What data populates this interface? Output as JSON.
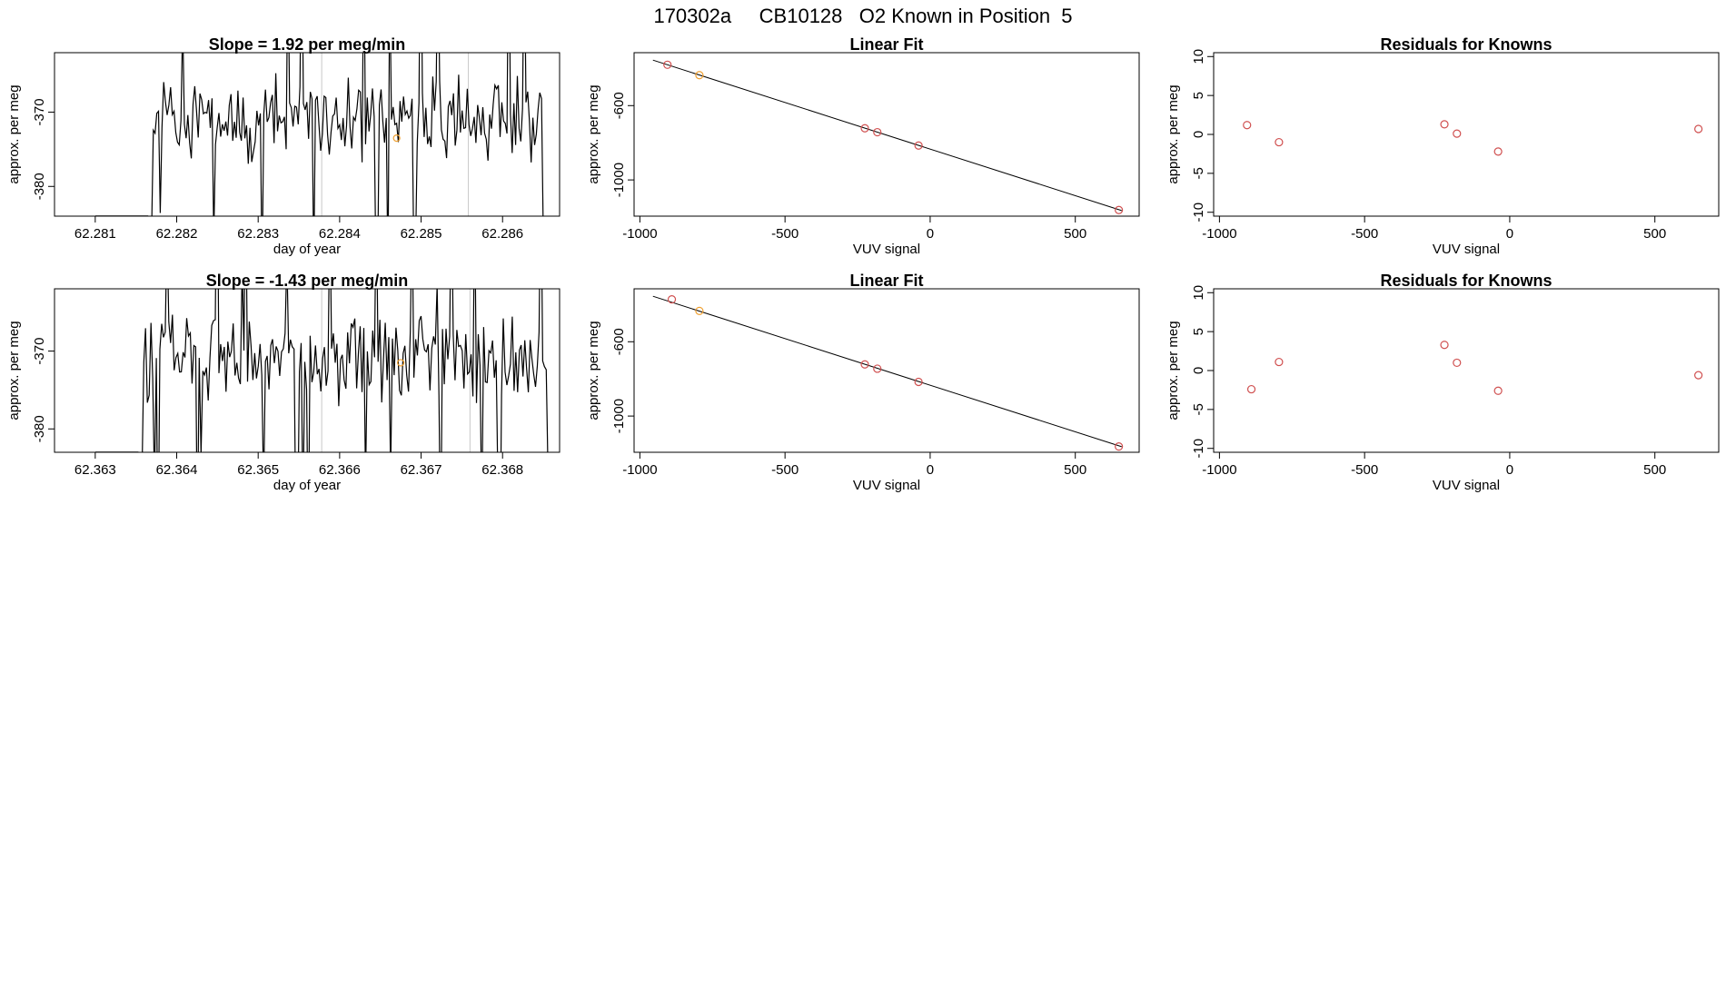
{
  "page_title": "170302a     CB10128   O2 Known in Position  5",
  "chart_data": [
    {
      "id": "ts1",
      "type": "line",
      "title": "Slope =  1.92  per meg/min",
      "xlabel": "day of year",
      "ylabel": "approx. per meg",
      "xlim": [
        62.2805,
        62.2867
      ],
      "ylim": [
        -384,
        -362
      ],
      "xticks": [
        "62.281",
        "62.282",
        "62.283",
        "62.284",
        "62.285",
        "62.286"
      ],
      "yticks": [
        "-370",
        "-380"
      ],
      "x_start": 62.28165,
      "x_end": 62.28652,
      "seed": 11,
      "vlines": [
        62.28378,
        62.28558
      ],
      "marker": {
        "x": 62.2847,
        "y": -373.5
      }
    },
    {
      "id": "fit1",
      "type": "scatter",
      "title": "Linear Fit",
      "xlabel": "VUV signal",
      "ylabel": "approx. per meg",
      "xlim": [
        -1020,
        720
      ],
      "ylim": [
        -1195,
        -315
      ],
      "xticks": [
        "-1000",
        "-500",
        "0",
        "500"
      ],
      "yticks": [
        "-600",
        "-1000"
      ],
      "fit_line": {
        "x": [
          -955,
          660
        ],
        "y": [
          -355,
          -1165
        ]
      },
      "points": [
        {
          "x": -905,
          "y": -380,
          "color": "#d05050"
        },
        {
          "x": -795,
          "y": -436,
          "color": "#f0a030"
        },
        {
          "x": -225,
          "y": -722,
          "color": "#d05050"
        },
        {
          "x": -182,
          "y": -743,
          "color": "#d05050"
        },
        {
          "x": -40,
          "y": -815,
          "color": "#d05050"
        },
        {
          "x": 650,
          "y": -1162,
          "color": "#d05050"
        }
      ]
    },
    {
      "id": "res1",
      "type": "scatter",
      "title": "Residuals for Knowns",
      "xlabel": "VUV signal",
      "ylabel": "approx. per meg",
      "xlim": [
        -1020,
        720
      ],
      "ylim": [
        -10.5,
        10.5
      ],
      "xticks": [
        "-1000",
        "-500",
        "0",
        "500"
      ],
      "yticks": [
        "10",
        "5",
        "0",
        "-5",
        "-10"
      ],
      "points": [
        {
          "x": -905,
          "y": 1.2,
          "color": "#d05050"
        },
        {
          "x": -795,
          "y": -1.0,
          "color": "#d05050"
        },
        {
          "x": -225,
          "y": 1.3,
          "color": "#d05050"
        },
        {
          "x": -182,
          "y": 0.1,
          "color": "#d05050"
        },
        {
          "x": -40,
          "y": -2.2,
          "color": "#d05050"
        },
        {
          "x": 650,
          "y": 0.7,
          "color": "#d05050"
        }
      ]
    },
    {
      "id": "ts2",
      "type": "line",
      "title": "Slope =  -1.43  per meg/min",
      "xlabel": "day of year",
      "ylabel": "approx. per meg",
      "xlim": [
        62.3625,
        62.3687
      ],
      "ylim": [
        -383,
        -362
      ],
      "xticks": [
        "62.363",
        "62.364",
        "62.365",
        "62.366",
        "62.367",
        "62.368"
      ],
      "yticks": [
        "-370",
        "-380"
      ],
      "x_start": 62.36353,
      "x_end": 62.36858,
      "seed": 29,
      "vlines": [
        62.36578,
        62.3676
      ],
      "marker": {
        "x": 62.36675,
        "y": -371.5
      }
    },
    {
      "id": "fit2",
      "type": "scatter",
      "title": "Linear Fit",
      "xlabel": "VUV signal",
      "ylabel": "approx. per meg",
      "xlim": [
        -1020,
        720
      ],
      "ylim": [
        -1195,
        -315
      ],
      "xticks": [
        "-1000",
        "-500",
        "0",
        "500"
      ],
      "yticks": [
        "-600",
        "-1000"
      ],
      "fit_line": {
        "x": [
          -955,
          660
        ],
        "y": [
          -355,
          -1165
        ]
      },
      "points": [
        {
          "x": -890,
          "y": -372,
          "color": "#d05050"
        },
        {
          "x": -795,
          "y": -434,
          "color": "#f0a030"
        },
        {
          "x": -225,
          "y": -722,
          "color": "#d05050"
        },
        {
          "x": -182,
          "y": -745,
          "color": "#d05050"
        },
        {
          "x": -40,
          "y": -816,
          "color": "#d05050"
        },
        {
          "x": 650,
          "y": -1164,
          "color": "#d05050"
        }
      ]
    },
    {
      "id": "res2",
      "type": "scatter",
      "title": "Residuals for Knowns",
      "xlabel": "VUV signal",
      "ylabel": "approx. per meg",
      "xlim": [
        -1020,
        720
      ],
      "ylim": [
        -10.5,
        10.5
      ],
      "xticks": [
        "-1000",
        "-500",
        "0",
        "500"
      ],
      "yticks": [
        "10",
        "5",
        "0",
        "-5",
        "-10"
      ],
      "points": [
        {
          "x": -890,
          "y": -2.4,
          "color": "#d05050"
        },
        {
          "x": -795,
          "y": 1.1,
          "color": "#d05050"
        },
        {
          "x": -225,
          "y": 3.3,
          "color": "#d05050"
        },
        {
          "x": -182,
          "y": 1.0,
          "color": "#d05050"
        },
        {
          "x": -40,
          "y": -2.6,
          "color": "#d05050"
        },
        {
          "x": 650,
          "y": -0.6,
          "color": "#d05050"
        }
      ]
    }
  ]
}
